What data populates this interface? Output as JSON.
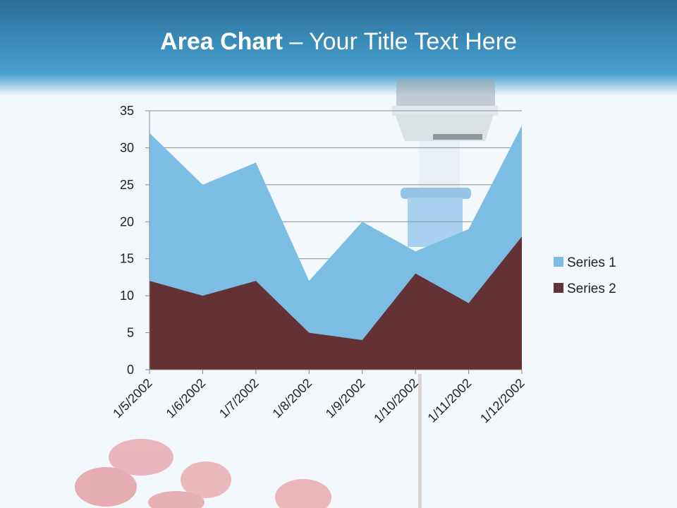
{
  "slide": {
    "title_bold": "Area Chart",
    "title_rest": " – Your Title Text Here"
  },
  "colors": {
    "series1": "#7bbde3",
    "series2": "#643234",
    "header": "#3b8cba",
    "gridline": "#8c8c8c"
  },
  "chart_data": {
    "type": "area",
    "stacked": false,
    "categories": [
      "1/5/2002",
      "1/6/2002",
      "1/7/2002",
      "1/8/2002",
      "1/9/2002",
      "1/10/2002",
      "1/11/2002",
      "1/12/2002"
    ],
    "series": [
      {
        "name": "Series 1",
        "values": [
          32,
          25,
          28,
          12,
          20,
          16,
          19,
          33
        ]
      },
      {
        "name": "Series 2",
        "values": [
          12,
          10,
          12,
          5,
          4,
          13,
          9,
          18
        ]
      }
    ],
    "ylim": [
      0,
      35
    ],
    "yticks": [
      0,
      5,
      10,
      15,
      20,
      25,
      30,
      35
    ],
    "grid": true,
    "legend_position": "right"
  }
}
